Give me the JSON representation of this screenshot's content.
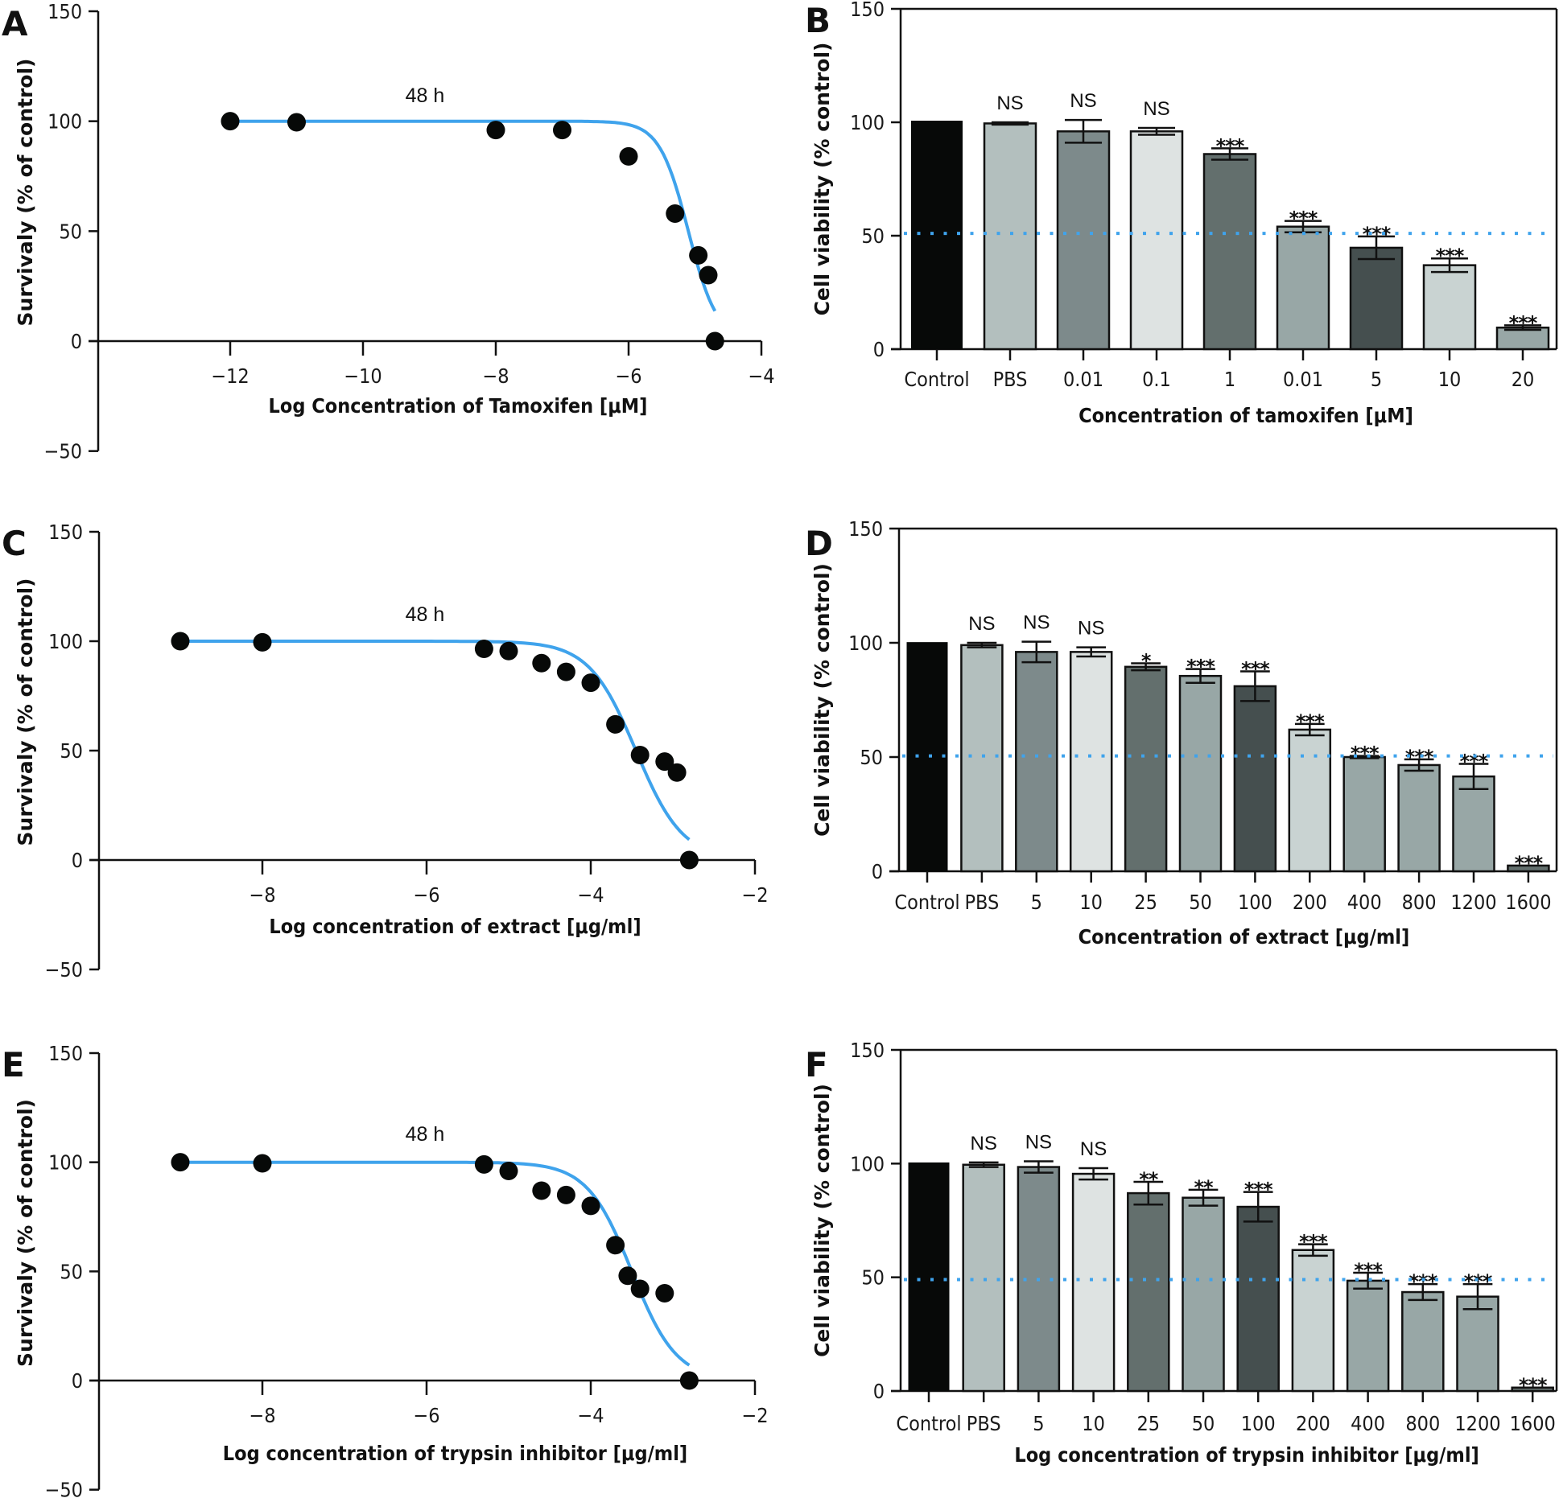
{
  "figure": {
    "curve_color": "#3fa3ec",
    "point_color": "#070908",
    "threshold_color": "#3fa3ec"
  },
  "chart_data": [
    {
      "panel": "A",
      "type": "scatter",
      "title": "",
      "annotation": "48 h",
      "xlabel": "Log Concentration of Tamoxifen [μM]",
      "ylabel": "Survivaly (% of control)",
      "xlim": [
        -14,
        -4
      ],
      "ylim": [
        -50,
        150
      ],
      "xticks": [
        -12,
        -10,
        -8,
        -6,
        -4
      ],
      "xtick_labels": [
        "−12",
        "−10",
        "−8",
        "−6",
        "−4"
      ],
      "yticks": [
        -50,
        0,
        50,
        100,
        150
      ],
      "ytick_labels": [
        "−50",
        "0",
        "50",
        "100",
        "150"
      ],
      "grid": false,
      "points": [
        {
          "x": -12,
          "y": 100
        },
        {
          "x": -11,
          "y": 99.5
        },
        {
          "x": -8,
          "y": 96
        },
        {
          "x": -7,
          "y": 96
        },
        {
          "x": -6,
          "y": 84
        },
        {
          "x": -5.3,
          "y": 58
        },
        {
          "x": -4.95,
          "y": 39
        },
        {
          "x": -4.8,
          "y": 30
        },
        {
          "x": -4.7,
          "y": 0
        }
      ],
      "fit_curve": {
        "top": 100,
        "bottom": 0,
        "log_ic50": -5.1,
        "hill": 1.25,
        "x_range": [
          -12,
          -4.7
        ]
      }
    },
    {
      "panel": "B",
      "type": "bar",
      "title": "",
      "xlabel": "Concentration of tamoxifen [μM]",
      "ylabel": "Cell viability (% control)",
      "ylim": [
        0,
        150
      ],
      "yticks": [
        0,
        50,
        100,
        150
      ],
      "ytick_labels": [
        "0",
        "50",
        "100",
        "150"
      ],
      "grid": false,
      "threshold": 51,
      "categories": [
        "Control",
        "PBS",
        "0.01",
        "0.1",
        "1",
        "0.01",
        "5",
        "10",
        "20"
      ],
      "values": [
        100.7,
        99.5,
        96,
        96,
        86,
        54,
        44.7,
        37,
        9.5
      ],
      "errors": [
        0,
        0.5,
        5,
        1.5,
        2.5,
        2.5,
        5,
        3,
        1
      ],
      "significance": [
        "",
        "NS",
        "NS",
        "NS",
        "***",
        "***",
        "***",
        "***",
        "***"
      ],
      "colors": [
        "#070908",
        "#b3bfbe",
        "#7d8a8b",
        "#dee3e2",
        "#636f6d",
        "#98a7a6",
        "#454f4f",
        "#c9d3d2",
        "#98a7a6"
      ]
    },
    {
      "panel": "C",
      "type": "scatter",
      "title": "",
      "annotation": "48 h",
      "xlabel": "Log concentration of extract [μg/ml]",
      "ylabel": "Survivaly (% of control)",
      "xlim": [
        -10,
        -2
      ],
      "ylim": [
        -50,
        150
      ],
      "xticks": [
        -8,
        -6,
        -4,
        -2
      ],
      "xtick_labels": [
        "−8",
        "−6",
        "−4",
        "−2"
      ],
      "yticks": [
        -50,
        0,
        50,
        100,
        150
      ],
      "ytick_labels": [
        "−50",
        "0",
        "50",
        "100",
        "150"
      ],
      "grid": false,
      "points": [
        {
          "x": -9,
          "y": 100
        },
        {
          "x": -8,
          "y": 99.5
        },
        {
          "x": -5.3,
          "y": 96.5
        },
        {
          "x": -5,
          "y": 95.5
        },
        {
          "x": -4.6,
          "y": 90
        },
        {
          "x": -4.3,
          "y": 86
        },
        {
          "x": -4,
          "y": 81
        },
        {
          "x": -3.7,
          "y": 62
        },
        {
          "x": -3.4,
          "y": 48
        },
        {
          "x": -3.1,
          "y": 45
        },
        {
          "x": -2.95,
          "y": 40
        },
        {
          "x": -2.8,
          "y": 0
        }
      ],
      "fit_curve": {
        "top": 100,
        "bottom": 0,
        "log_ic50": -3.45,
        "hill": 0.95,
        "x_range": [
          -9,
          -2.8
        ]
      }
    },
    {
      "panel": "D",
      "type": "bar",
      "title": "",
      "xlabel": "Concentration of extract [μg/ml]",
      "ylabel": "Cell viability (% control)",
      "ylim": [
        0,
        150
      ],
      "yticks": [
        0,
        50,
        100,
        150
      ],
      "ytick_labels": [
        "0",
        "50",
        "100",
        "150"
      ],
      "grid": false,
      "threshold": 50.5,
      "categories": [
        "Control",
        "PBS",
        "5",
        "10",
        "25",
        "50",
        "100",
        "200",
        "400",
        "800",
        "1200",
        "1600"
      ],
      "values": [
        100.3,
        99,
        96,
        96,
        89.5,
        85.5,
        81,
        62,
        50,
        46.5,
        41.5,
        2.5
      ],
      "errors": [
        0,
        1,
        4.5,
        2,
        1.5,
        3,
        6.5,
        2.5,
        0.5,
        2.5,
        5.5,
        0
      ],
      "significance": [
        "",
        "NS",
        "NS",
        "NS",
        "*",
        "***",
        "***",
        "***",
        "***",
        "***",
        "***",
        "***"
      ],
      "colors": [
        "#070908",
        "#b3bfbe",
        "#7d8a8b",
        "#dee3e2",
        "#636f6d",
        "#98a7a6",
        "#454f4f",
        "#c9d3d2",
        "#98a7a6",
        "#98a7a6",
        "#98a7a6",
        "#636f6d"
      ]
    },
    {
      "panel": "E",
      "type": "scatter",
      "title": "",
      "annotation": "48 h",
      "xlabel": "Log concentration of trypsin inhibitor [μg/ml]",
      "ylabel": "Survivaly (% of control)",
      "xlim": [
        -10,
        -2
      ],
      "ylim": [
        -50,
        150
      ],
      "xticks": [
        -8,
        -6,
        -4,
        -2
      ],
      "xtick_labels": [
        "−8",
        "−6",
        "−4",
        "−2"
      ],
      "yticks": [
        -50,
        0,
        50,
        100,
        150
      ],
      "ytick_labels": [
        "−50",
        "0",
        "50",
        "100",
        "150"
      ],
      "grid": false,
      "points": [
        {
          "x": -9,
          "y": 100
        },
        {
          "x": -8,
          "y": 99.5
        },
        {
          "x": -5.3,
          "y": 99
        },
        {
          "x": -5,
          "y": 96
        },
        {
          "x": -4.6,
          "y": 87
        },
        {
          "x": -4.3,
          "y": 85
        },
        {
          "x": -4,
          "y": 80
        },
        {
          "x": -3.7,
          "y": 62
        },
        {
          "x": -3.55,
          "y": 48
        },
        {
          "x": -3.4,
          "y": 42
        },
        {
          "x": -3.1,
          "y": 40
        },
        {
          "x": -2.8,
          "y": 0
        }
      ],
      "fit_curve": {
        "top": 100,
        "bottom": 0,
        "log_ic50": -3.5,
        "hill": 1.0,
        "x_range": [
          -9,
          -2.8
        ]
      }
    },
    {
      "panel": "F",
      "type": "bar",
      "title": "",
      "xlabel": "Log concentration of trypsin inhibitor [μg/ml]",
      "ylabel": "Cell viability (% control)",
      "ylim": [
        0,
        150
      ],
      "yticks": [
        0,
        50,
        100,
        150
      ],
      "ytick_labels": [
        "0",
        "50",
        "100",
        "150"
      ],
      "grid": false,
      "threshold": 49,
      "categories": [
        "Control",
        "PBS",
        "5",
        "10",
        "25",
        "50",
        "100",
        "200",
        "400",
        "800",
        "1200",
        "1600"
      ],
      "values": [
        100.5,
        99.5,
        98.5,
        95.5,
        87,
        85,
        81,
        62,
        48.5,
        43.5,
        41.5,
        1.5
      ],
      "errors": [
        0,
        1,
        2.5,
        2.5,
        5,
        3.5,
        6.5,
        2.5,
        3.5,
        3.5,
        5.5,
        0
      ],
      "significance": [
        "",
        "NS",
        "NS",
        "NS",
        "**",
        "**",
        "***",
        "***",
        "***",
        "***",
        "***",
        "***"
      ],
      "colors": [
        "#070908",
        "#b3bfbe",
        "#7d8a8b",
        "#dee3e2",
        "#636f6d",
        "#98a7a6",
        "#454f4f",
        "#c9d3d2",
        "#98a7a6",
        "#98a7a6",
        "#98a7a6",
        "#636f6d"
      ]
    }
  ]
}
